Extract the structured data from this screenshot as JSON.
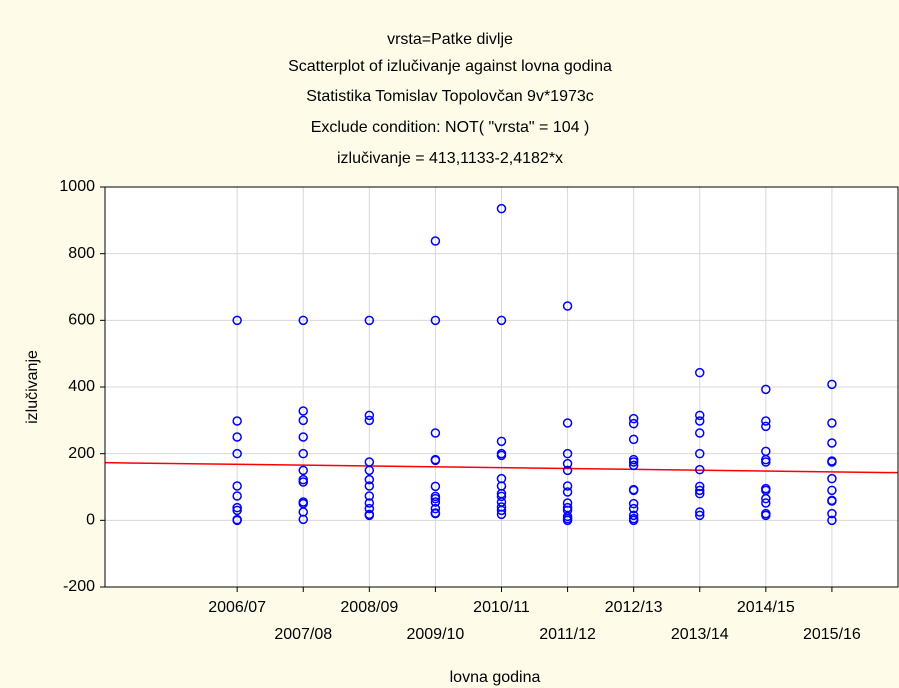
{
  "chart_data": {
    "type": "scatter",
    "title": "vrsta=Patke divlje",
    "subtitle": [
      "Scatterplot of izlučivanje against lovna godina",
      "Statistika Tomislav Topolovčan 9v*1973c",
      "Exclude condition: NOT( \"vrsta\" = 104 )",
      "izlučivanje = 413,1133-2,4182*x"
    ],
    "x_label": "lovna godina",
    "y_label": "izlučivanje",
    "categories": [
      "2006/07",
      "2007/08",
      "2008/09",
      "2009/10",
      "2010/11",
      "2011/12",
      "2012/13",
      "2013/14",
      "2014/15",
      "2015/16"
    ],
    "values": [
      [
        600,
        298,
        250,
        200,
        103,
        73,
        38,
        30,
        0,
        2
      ],
      [
        600,
        328,
        300,
        250,
        200,
        150,
        122,
        115,
        55,
        50,
        25,
        3
      ],
      [
        600,
        315,
        300,
        175,
        150,
        122,
        103,
        73,
        52,
        35,
        18,
        15
      ],
      [
        838,
        600,
        262,
        182,
        180,
        102,
        72,
        65,
        55,
        35,
        22,
        20
      ],
      [
        935,
        600,
        237,
        200,
        195,
        125,
        103,
        80,
        72,
        55,
        40,
        30,
        18
      ],
      [
        643,
        292,
        200,
        170,
        150,
        103,
        85,
        52,
        38,
        30,
        12,
        5,
        0
      ],
      [
        305,
        290,
        243,
        182,
        175,
        165,
        92,
        90,
        50,
        35,
        15,
        5,
        0
      ],
      [
        443,
        315,
        298,
        262,
        200,
        152,
        102,
        90,
        80,
        25,
        15
      ],
      [
        393,
        298,
        282,
        207,
        182,
        175,
        95,
        90,
        65,
        52,
        20,
        15
      ],
      [
        408,
        292,
        232,
        175,
        178,
        125,
        90,
        60,
        58,
        20,
        0
      ]
    ],
    "color": "#0000ff",
    "trend_line": {
      "values": [
        173,
        143
      ],
      "color": "#ff0000"
    },
    "ylim": [
      -200,
      1000
    ],
    "yticks": [
      -200,
      0,
      200,
      400,
      600,
      800,
      1000
    ],
    "grid": true
  }
}
